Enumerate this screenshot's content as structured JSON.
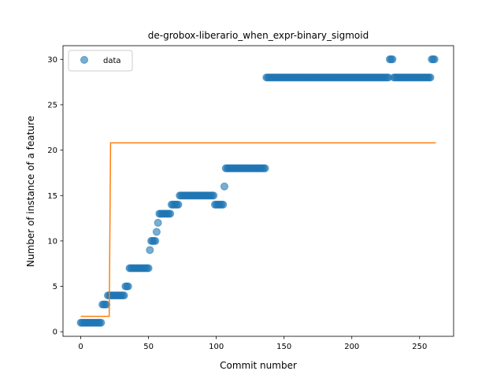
{
  "chart_data": {
    "type": "scatter",
    "title": "de-grobox-liberario_when_expr-binary_sigmoid",
    "xlabel": "Commit number",
    "ylabel": "Number of instance of a feature",
    "xlim": [
      -13.1,
      275.1
    ],
    "ylim": [
      -0.5,
      31.5
    ],
    "xticks": [
      0,
      50,
      100,
      150,
      200,
      250
    ],
    "yticks": [
      0,
      5,
      10,
      15,
      20,
      25,
      30
    ],
    "grid": false,
    "legend": {
      "placement": "top-left",
      "entries": [
        {
          "label": "data",
          "series": "data"
        }
      ]
    },
    "colors": {
      "data": "#1f77b4",
      "fit": "#ff7f0e"
    },
    "series": [
      {
        "name": "data",
        "kind": "scatter",
        "segments": [
          {
            "from": 0,
            "to": 15,
            "y": 1
          },
          {
            "from": 16,
            "to": 19,
            "y": 3
          },
          {
            "from": 20,
            "to": 21,
            "y": 4
          },
          {
            "from": 22,
            "to": 32,
            "y": 4
          },
          {
            "from": 33,
            "to": 35,
            "y": 5
          },
          {
            "from": 36,
            "to": 50,
            "y": 7
          },
          {
            "from": 51,
            "to": 51,
            "y": 9
          },
          {
            "from": 52,
            "to": 55,
            "y": 10
          },
          {
            "from": 56,
            "to": 56,
            "y": 11
          },
          {
            "from": 57,
            "to": 57,
            "y": 12
          },
          {
            "from": 58,
            "to": 66,
            "y": 13
          },
          {
            "from": 67,
            "to": 72,
            "y": 14
          },
          {
            "from": 73,
            "to": 98,
            "y": 15
          },
          {
            "from": 99,
            "to": 105,
            "y": 14
          },
          {
            "from": 106,
            "to": 106,
            "y": 16
          },
          {
            "from": 107,
            "to": 136,
            "y": 18
          },
          {
            "from": 137,
            "to": 227,
            "y": 28
          },
          {
            "from": 228,
            "to": 230,
            "y": 30
          },
          {
            "from": 231,
            "to": 258,
            "y": 28
          },
          {
            "from": 259,
            "to": 261,
            "y": 30
          }
        ]
      },
      {
        "name": "fit",
        "kind": "line",
        "x": [
          0,
          21,
          22,
          262
        ],
        "y": [
          1.7,
          1.7,
          20.8,
          20.8
        ]
      }
    ]
  }
}
